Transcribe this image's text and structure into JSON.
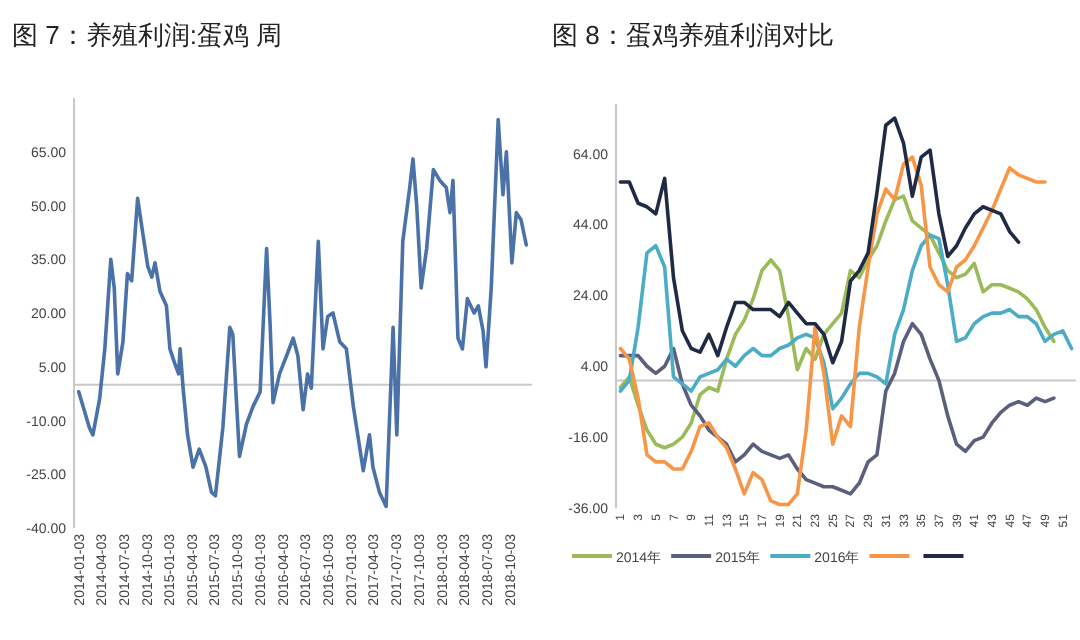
{
  "chart_data": [
    {
      "type": "line",
      "title": "图 7：养殖利润:蛋鸡 周",
      "x": [
        "2014-01-03",
        "2014-02-15",
        "2014-03-01",
        "2014-03-28",
        "2014-04-18",
        "2014-05-12",
        "2014-05-26",
        "2014-06-09",
        "2014-06-30",
        "2014-07-18",
        "2014-08-04",
        "2014-08-28",
        "2014-09-14",
        "2014-10-08",
        "2014-10-24",
        "2014-11-06",
        "2014-11-26",
        "2014-12-22",
        "2015-01-05",
        "2015-01-24",
        "2015-02-09",
        "2015-02-15",
        "2015-02-27",
        "2015-03-17",
        "2015-04-08",
        "2015-05-03",
        "2015-05-30",
        "2015-06-21",
        "2015-07-07",
        "2015-08-06",
        "2015-09-03",
        "2015-09-15",
        "2015-10-12",
        "2015-11-09",
        "2015-12-06",
        "2016-01-03",
        "2016-01-29",
        "2016-02-12",
        "2016-02-24",
        "2016-03-21",
        "2016-04-18",
        "2016-05-15",
        "2016-06-03",
        "2016-06-24",
        "2016-07-12",
        "2016-07-27",
        "2016-08-24",
        "2016-09-12",
        "2016-10-01",
        "2016-10-22",
        "2016-11-18",
        "2016-12-15",
        "2017-01-12",
        "2017-02-21",
        "2017-03-18",
        "2017-04-01",
        "2017-04-27",
        "2017-05-24",
        "2017-06-21",
        "2017-07-06",
        "2017-07-30",
        "2017-08-27",
        "2017-09-09",
        "2017-09-24",
        "2017-10-12",
        "2017-11-03",
        "2017-11-30",
        "2017-12-26",
        "2018-01-21",
        "2018-02-05",
        "2018-02-17",
        "2018-03-09",
        "2018-03-27",
        "2018-04-16",
        "2018-05-13",
        "2018-05-30",
        "2018-06-18",
        "2018-06-30",
        "2018-07-21",
        "2018-08-18",
        "2018-09-06",
        "2018-09-20",
        "2018-10-12",
        "2018-10-30",
        "2018-11-18",
        "2018-12-09"
      ],
      "series": [
        {
          "color": "#4a72a8",
          "values": [
            -2,
            -12,
            -14,
            -4,
            10,
            35,
            27,
            3,
            12,
            31,
            29,
            52,
            44,
            33,
            30,
            34,
            26,
            22,
            10,
            6,
            3,
            10,
            -1,
            -14,
            -23,
            -18,
            -23,
            -30,
            -31,
            -12,
            16,
            14,
            -20,
            -11,
            -6,
            -2,
            38,
            17,
            -5,
            3,
            8,
            13,
            8,
            -7,
            3,
            -1,
            40,
            10,
            19,
            20,
            12,
            10,
            -6,
            -24,
            -14,
            -23,
            -30,
            -34,
            16,
            -14,
            40,
            55,
            63,
            50,
            27,
            38,
            60,
            57,
            55,
            48,
            57,
            13,
            10,
            24,
            20,
            22,
            15,
            5,
            27,
            74,
            53,
            65,
            34,
            48,
            46,
            39
          ]
        }
      ],
      "xlim": [
        "2013-12-15",
        "2019-01-01"
      ],
      "xticks": [
        "2014-01-03",
        "2014-04-03",
        "2014-07-03",
        "2014-10-03",
        "2015-01-03",
        "2015-04-03",
        "2015-07-03",
        "2015-10-03",
        "2016-01-03",
        "2016-04-03",
        "2016-07-03",
        "2016-10-03",
        "2017-01-03",
        "2017-04-03",
        "2017-07-03",
        "2017-10-03",
        "2018-01-03",
        "2018-04-03",
        "2018-07-03",
        "2018-10-03"
      ],
      "ylim": [
        -40,
        80
      ],
      "yticks": [
        {
          "value": -40,
          "label": "-40.00"
        },
        {
          "value": -25,
          "label": "-25.00"
        },
        {
          "value": -10,
          "label": "-10.00"
        },
        {
          "value": 5,
          "label": "5.00"
        },
        {
          "value": 20,
          "label": "20.00"
        },
        {
          "value": 35,
          "label": "35.00"
        },
        {
          "value": 50,
          "label": "50.00"
        },
        {
          "value": 65,
          "label": "65.00"
        }
      ]
    },
    {
      "type": "line",
      "title": "图 8：蛋鸡养殖利润对比",
      "categories": [
        "1",
        null,
        "3",
        null,
        "5",
        null,
        "7",
        null,
        "9",
        null,
        "11",
        null,
        "13",
        null,
        "15",
        null,
        "17",
        null,
        "19",
        null,
        "21",
        null,
        "23",
        null,
        "25",
        null,
        "27",
        null,
        "29",
        null,
        "31",
        null,
        "33",
        null,
        "35",
        null,
        "37",
        null,
        "39",
        null,
        "41",
        null,
        "43",
        null,
        "45",
        null,
        "47",
        null,
        "49",
        null,
        "51",
        null
      ],
      "series": [
        {
          "name": "2014年",
          "color": "#9bbb59",
          "values": [
            -2,
            1,
            -7,
            -14,
            -18,
            -19,
            -18,
            -16,
            -12,
            -4,
            -2,
            -3,
            6,
            13,
            17,
            23,
            31,
            34,
            31,
            18,
            3,
            9,
            6,
            13,
            16,
            19,
            31,
            29,
            34,
            38,
            45,
            51,
            52,
            45,
            43,
            41,
            36,
            31,
            29,
            30,
            33,
            25,
            27,
            27,
            26,
            25,
            23,
            20,
            15,
            11,
            null,
            null
          ]
        },
        {
          "name": "2015年",
          "color": "#5b5f7e",
          "values": [
            7,
            7,
            7,
            4,
            2,
            4,
            9,
            -1,
            -7,
            -10,
            -14,
            -16,
            -18,
            -23,
            -21,
            -18,
            -20,
            -21,
            -22,
            -21,
            -25,
            -28,
            -29,
            -30,
            -30,
            -31,
            -32,
            -29,
            -23,
            -21,
            -3,
            2,
            11,
            16,
            13,
            6,
            0,
            -10,
            -18,
            -20,
            -17,
            -16,
            -12,
            -9,
            -7,
            -6,
            -7,
            -5,
            -6,
            -5,
            null,
            null
          ]
        },
        {
          "name": "2016年",
          "color": "#4bacc6",
          "values": [
            -3,
            0,
            15,
            36,
            38,
            32,
            1,
            -1,
            -3,
            1,
            2,
            3,
            6,
            4,
            7,
            9,
            7,
            7,
            9,
            10,
            12,
            13,
            12,
            5,
            -8,
            -5,
            -1,
            2,
            2,
            1,
            -1,
            13,
            20,
            31,
            38,
            41,
            40,
            27,
            11,
            12,
            16,
            18,
            19,
            19,
            20,
            18,
            18,
            16,
            11,
            13,
            14,
            9
          ]
        },
        {
          "color": "#f79646",
          "values": [
            9,
            6,
            -5,
            -21,
            -23,
            -23,
            -25,
            -25,
            -20,
            -13,
            -12,
            -16,
            -19,
            -25,
            -32,
            -26,
            -28,
            -34,
            -35,
            -35,
            -32,
            -14,
            15,
            2,
            -18,
            -10,
            -13,
            15,
            32,
            47,
            54,
            51,
            61,
            63,
            55,
            32,
            27,
            25,
            32,
            34,
            38,
            43,
            48,
            54,
            60,
            58,
            57,
            56,
            56,
            null,
            null,
            null
          ]
        },
        {
          "color": "#1f2a44",
          "values": [
            56,
            56,
            50,
            49,
            47,
            57,
            29,
            14,
            9,
            8,
            13,
            7,
            15,
            22,
            22,
            20,
            20,
            20,
            18,
            22,
            19,
            16,
            16,
            13,
            5,
            11,
            28,
            31,
            36,
            53,
            72,
            74,
            67,
            52,
            63,
            65,
            47,
            35,
            38,
            43,
            47,
            49,
            48,
            47,
            42,
            39,
            null,
            null,
            null,
            null,
            null,
            null
          ]
        }
      ],
      "ylim": [
        -36,
        78
      ],
      "yticks": [
        {
          "value": -36,
          "label": "-36.00"
        },
        {
          "value": -16,
          "label": "-16.00"
        },
        {
          "value": 4,
          "label": "4.00"
        },
        {
          "value": 24,
          "label": "24.00"
        },
        {
          "value": 44,
          "label": "44.00"
        },
        {
          "value": 64,
          "label": "64.00"
        }
      ],
      "legend": "bottom"
    }
  ]
}
